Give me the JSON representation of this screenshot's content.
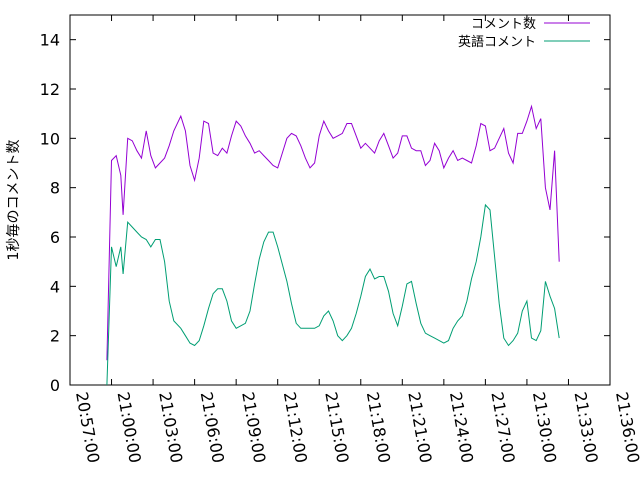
{
  "chart_data": {
    "type": "line",
    "xlabel": "",
    "ylabel": "1秒毎のコメント数",
    "ylim": [
      0,
      15
    ],
    "yticks": [
      "0",
      "2",
      "4",
      "6",
      "8",
      "10",
      "12",
      "14"
    ],
    "xlim_seconds": [
      0,
      2340
    ],
    "xticks": [
      "20:57:00",
      "21:00:00",
      "21:03:00",
      "21:06:00",
      "21:09:00",
      "21:12:00",
      "21:15:00",
      "21:18:00",
      "21:21:00",
      "21:24:00",
      "21:27:00",
      "21:30:00",
      "21:33:00",
      "21:36:00"
    ],
    "legend_position": "top-right",
    "grid": false,
    "series": [
      {
        "name": "コメント数",
        "color": "#9400d3",
        "points": [
          [
            "20:59:40",
            1.0
          ],
          [
            "21:00:00",
            9.1
          ],
          [
            "21:00:20",
            9.3
          ],
          [
            "21:00:40",
            8.5
          ],
          [
            "21:00:50",
            6.9
          ],
          [
            "21:01:10",
            10.0
          ],
          [
            "21:01:30",
            9.9
          ],
          [
            "21:01:50",
            9.5
          ],
          [
            "21:02:10",
            9.2
          ],
          [
            "21:02:30",
            10.3
          ],
          [
            "21:02:50",
            9.3
          ],
          [
            "21:03:10",
            8.8
          ],
          [
            "21:03:30",
            9.0
          ],
          [
            "21:03:50",
            9.2
          ],
          [
            "21:04:10",
            9.7
          ],
          [
            "21:04:30",
            10.3
          ],
          [
            "21:05:00",
            10.9
          ],
          [
            "21:05:20",
            10.3
          ],
          [
            "21:05:40",
            8.9
          ],
          [
            "21:06:00",
            8.3
          ],
          [
            "21:06:20",
            9.2
          ],
          [
            "21:06:40",
            10.7
          ],
          [
            "21:07:00",
            10.6
          ],
          [
            "21:07:20",
            9.4
          ],
          [
            "21:07:40",
            9.3
          ],
          [
            "21:08:00",
            9.6
          ],
          [
            "21:08:20",
            9.4
          ],
          [
            "21:08:40",
            10.1
          ],
          [
            "21:09:00",
            10.7
          ],
          [
            "21:09:20",
            10.5
          ],
          [
            "21:09:40",
            10.1
          ],
          [
            "21:10:00",
            9.8
          ],
          [
            "21:10:20",
            9.4
          ],
          [
            "21:10:40",
            9.5
          ],
          [
            "21:11:00",
            9.3
          ],
          [
            "21:11:20",
            9.1
          ],
          [
            "21:11:40",
            8.9
          ],
          [
            "21:12:00",
            8.8
          ],
          [
            "21:12:20",
            9.4
          ],
          [
            "21:12:40",
            10.0
          ],
          [
            "21:13:00",
            10.2
          ],
          [
            "21:13:20",
            10.1
          ],
          [
            "21:13:40",
            9.7
          ],
          [
            "21:14:00",
            9.2
          ],
          [
            "21:14:20",
            8.8
          ],
          [
            "21:14:40",
            9.0
          ],
          [
            "21:15:00",
            10.1
          ],
          [
            "21:15:20",
            10.7
          ],
          [
            "21:15:40",
            10.3
          ],
          [
            "21:16:00",
            10.0
          ],
          [
            "21:16:20",
            10.1
          ],
          [
            "21:16:40",
            10.2
          ],
          [
            "21:17:00",
            10.6
          ],
          [
            "21:17:20",
            10.6
          ],
          [
            "21:17:40",
            10.1
          ],
          [
            "21:18:00",
            9.6
          ],
          [
            "21:18:20",
            9.8
          ],
          [
            "21:18:40",
            9.6
          ],
          [
            "21:19:00",
            9.4
          ],
          [
            "21:19:20",
            9.9
          ],
          [
            "21:19:40",
            10.2
          ],
          [
            "21:20:00",
            9.7
          ],
          [
            "21:20:20",
            9.2
          ],
          [
            "21:20:40",
            9.4
          ],
          [
            "21:21:00",
            10.1
          ],
          [
            "21:21:20",
            10.1
          ],
          [
            "21:21:40",
            9.6
          ],
          [
            "21:22:00",
            9.5
          ],
          [
            "21:22:20",
            9.5
          ],
          [
            "21:22:40",
            8.9
          ],
          [
            "21:23:00",
            9.1
          ],
          [
            "21:23:20",
            9.8
          ],
          [
            "21:23:40",
            9.5
          ],
          [
            "21:24:00",
            8.8
          ],
          [
            "21:24:20",
            9.2
          ],
          [
            "21:24:40",
            9.5
          ],
          [
            "21:25:00",
            9.1
          ],
          [
            "21:25:20",
            9.2
          ],
          [
            "21:25:40",
            9.1
          ],
          [
            "21:26:00",
            9.0
          ],
          [
            "21:26:20",
            9.7
          ],
          [
            "21:26:40",
            10.6
          ],
          [
            "21:27:00",
            10.5
          ],
          [
            "21:27:20",
            9.5
          ],
          [
            "21:27:40",
            9.6
          ],
          [
            "21:28:00",
            10.0
          ],
          [
            "21:28:20",
            10.4
          ],
          [
            "21:28:40",
            9.4
          ],
          [
            "21:29:00",
            9.0
          ],
          [
            "21:29:20",
            10.2
          ],
          [
            "21:29:40",
            10.2
          ],
          [
            "21:30:00",
            10.7
          ],
          [
            "21:30:20",
            11.3
          ],
          [
            "21:30:40",
            10.4
          ],
          [
            "21:31:00",
            10.8
          ],
          [
            "21:31:20",
            8.0
          ],
          [
            "21:31:40",
            7.1
          ],
          [
            "21:32:00",
            9.5
          ],
          [
            "21:32:20",
            5.0
          ]
        ]
      },
      {
        "name": "英語コメント",
        "color": "#009e73",
        "points": [
          [
            "20:59:40",
            0.0
          ],
          [
            "21:00:00",
            5.6
          ],
          [
            "21:00:20",
            4.8
          ],
          [
            "21:00:40",
            5.6
          ],
          [
            "21:00:50",
            4.5
          ],
          [
            "21:01:10",
            6.6
          ],
          [
            "21:01:30",
            6.4
          ],
          [
            "21:01:50",
            6.2
          ],
          [
            "21:02:10",
            6.0
          ],
          [
            "21:02:30",
            5.9
          ],
          [
            "21:02:50",
            5.6
          ],
          [
            "21:03:10",
            5.9
          ],
          [
            "21:03:30",
            5.9
          ],
          [
            "21:03:50",
            5.0
          ],
          [
            "21:04:10",
            3.4
          ],
          [
            "21:04:30",
            2.6
          ],
          [
            "21:05:00",
            2.3
          ],
          [
            "21:05:20",
            2.0
          ],
          [
            "21:05:40",
            1.7
          ],
          [
            "21:06:00",
            1.6
          ],
          [
            "21:06:20",
            1.8
          ],
          [
            "21:06:40",
            2.4
          ],
          [
            "21:07:00",
            3.1
          ],
          [
            "21:07:20",
            3.7
          ],
          [
            "21:07:40",
            3.9
          ],
          [
            "21:08:00",
            3.9
          ],
          [
            "21:08:20",
            3.4
          ],
          [
            "21:08:40",
            2.6
          ],
          [
            "21:09:00",
            2.3
          ],
          [
            "21:09:20",
            2.4
          ],
          [
            "21:09:40",
            2.5
          ],
          [
            "21:10:00",
            3.0
          ],
          [
            "21:10:20",
            4.1
          ],
          [
            "21:10:40",
            5.1
          ],
          [
            "21:11:00",
            5.8
          ],
          [
            "21:11:20",
            6.2
          ],
          [
            "21:11:40",
            6.2
          ],
          [
            "21:12:00",
            5.6
          ],
          [
            "21:12:20",
            4.9
          ],
          [
            "21:12:40",
            4.2
          ],
          [
            "21:13:00",
            3.3
          ],
          [
            "21:13:20",
            2.5
          ],
          [
            "21:13:40",
            2.3
          ],
          [
            "21:14:00",
            2.3
          ],
          [
            "21:14:20",
            2.3
          ],
          [
            "21:14:40",
            2.3
          ],
          [
            "21:15:00",
            2.4
          ],
          [
            "21:15:20",
            2.8
          ],
          [
            "21:15:40",
            3.0
          ],
          [
            "21:16:00",
            2.6
          ],
          [
            "21:16:20",
            2.0
          ],
          [
            "21:16:40",
            1.8
          ],
          [
            "21:17:00",
            2.0
          ],
          [
            "21:17:20",
            2.3
          ],
          [
            "21:17:40",
            2.9
          ],
          [
            "21:18:00",
            3.6
          ],
          [
            "21:18:20",
            4.4
          ],
          [
            "21:18:40",
            4.7
          ],
          [
            "21:19:00",
            4.3
          ],
          [
            "21:19:20",
            4.4
          ],
          [
            "21:19:40",
            4.4
          ],
          [
            "21:20:00",
            3.8
          ],
          [
            "21:20:20",
            2.9
          ],
          [
            "21:20:40",
            2.4
          ],
          [
            "21:21:00",
            3.2
          ],
          [
            "21:21:20",
            4.1
          ],
          [
            "21:21:40",
            4.2
          ],
          [
            "21:22:00",
            3.3
          ],
          [
            "21:22:20",
            2.5
          ],
          [
            "21:22:40",
            2.1
          ],
          [
            "21:23:00",
            2.0
          ],
          [
            "21:23:20",
            1.9
          ],
          [
            "21:23:40",
            1.8
          ],
          [
            "21:24:00",
            1.7
          ],
          [
            "21:24:20",
            1.8
          ],
          [
            "21:24:40",
            2.3
          ],
          [
            "21:25:00",
            2.6
          ],
          [
            "21:25:20",
            2.8
          ],
          [
            "21:25:40",
            3.4
          ],
          [
            "21:26:00",
            4.3
          ],
          [
            "21:26:20",
            5.0
          ],
          [
            "21:26:40",
            6.0
          ],
          [
            "21:27:00",
            7.3
          ],
          [
            "21:27:20",
            7.1
          ],
          [
            "21:27:40",
            5.2
          ],
          [
            "21:28:00",
            3.3
          ],
          [
            "21:28:20",
            1.9
          ],
          [
            "21:28:40",
            1.6
          ],
          [
            "21:29:00",
            1.8
          ],
          [
            "21:29:20",
            2.1
          ],
          [
            "21:29:40",
            3.0
          ],
          [
            "21:30:00",
            3.4
          ],
          [
            "21:30:20",
            1.9
          ],
          [
            "21:30:40",
            1.8
          ],
          [
            "21:31:00",
            2.2
          ],
          [
            "21:31:20",
            4.2
          ],
          [
            "21:31:40",
            3.6
          ],
          [
            "21:32:00",
            3.1
          ],
          [
            "21:32:20",
            1.9
          ]
        ]
      }
    ]
  }
}
